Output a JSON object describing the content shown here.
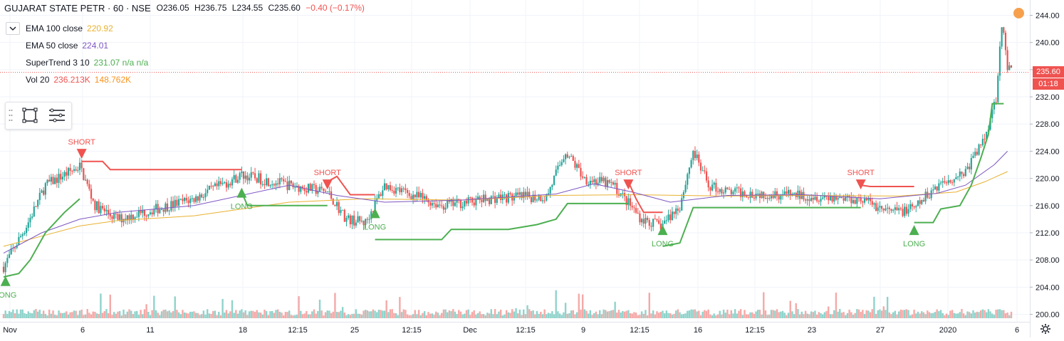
{
  "header": {
    "title": "GUJARAT STATE PETR · 60 · NSE",
    "ohlc": {
      "open": "O236.05",
      "high": "H236.75",
      "low": "L234.55",
      "close": "C235.60",
      "change": "−0.40 (−0.17%)"
    }
  },
  "indicators": [
    {
      "name": "EMA 100 close",
      "value": "220.92",
      "color": "#e8b130"
    },
    {
      "name": "EMA 50 close",
      "value": "224.01",
      "color": "#7e57c2"
    },
    {
      "name": "SuperTrend 3 10",
      "value": "231.07 n/a n/a",
      "color": "#4caf50"
    },
    {
      "name": "Vol 20",
      "value": "236.213K",
      "value2": "148.762K",
      "color": "#ef5350",
      "color2": "#f7931e"
    }
  ],
  "price_tags": {
    "last": "235.60",
    "countdown": "01:18"
  },
  "colors": {
    "up": "#26a69a",
    "down": "#ef5350",
    "supertrend_up": "#4caf50",
    "supertrend_down": "#ef5350",
    "ema100": "#e8b130",
    "ema50": "#7e57c2",
    "vol_up": "#8fd3cb",
    "vol_down": "#f4a9a7"
  },
  "icons": {
    "toolbox": [
      "rectangle-icon",
      "lines-icon"
    ],
    "settings": "gear-icon"
  },
  "chart_data": {
    "type": "candlestick",
    "price_axis": {
      "ticks": [
        "244.00",
        "240.00",
        "236.00",
        "232.00",
        "228.00",
        "224.00",
        "220.00",
        "216.00",
        "212.00",
        "208.00",
        "204.00",
        "200.00"
      ],
      "ylim": [
        199.5,
        245.5
      ]
    },
    "time_axis": {
      "ticks": [
        "Nov",
        "6",
        "11",
        "18",
        "12:15",
        "25",
        "12:15",
        "Dec",
        "12:15",
        "9",
        "12:15",
        "16",
        "12:15",
        "23",
        "27",
        "2020",
        "6"
      ]
    },
    "signals": [
      {
        "label": "LONG",
        "type": "long",
        "bar": 1,
        "price": 205.0
      },
      {
        "label": "SHORT",
        "type": "short",
        "bar": 41,
        "price": 223.5
      },
      {
        "label": "LONG",
        "type": "long",
        "bar": 125,
        "price": 218.0
      },
      {
        "label": "SHORT",
        "type": "short",
        "bar": 170,
        "price": 219.0
      },
      {
        "label": "LONG",
        "type": "long",
        "bar": 195,
        "price": 215.0
      },
      {
        "label": "SHORT",
        "type": "short",
        "bar": 328,
        "price": 219.0
      },
      {
        "label": "LONG",
        "type": "long",
        "bar": 346,
        "price": 212.5
      },
      {
        "label": "SHORT",
        "type": "short",
        "bar": 450,
        "price": 219.0
      },
      {
        "label": "LONG",
        "type": "long",
        "bar": 478,
        "price": 212.5
      }
    ],
    "supertrend": [
      {
        "dir": "up",
        "points": [
          [
            0,
            205.5
          ],
          [
            8,
            206
          ],
          [
            14,
            208
          ],
          [
            22,
            212
          ],
          [
            32,
            215
          ],
          [
            40,
            217
          ]
        ]
      },
      {
        "dir": "down",
        "points": [
          [
            41,
            222.5
          ],
          [
            52,
            222.5
          ],
          [
            56,
            221.3
          ],
          [
            125,
            221.3
          ]
        ]
      },
      {
        "dir": "up",
        "points": [
          [
            125,
            218
          ],
          [
            128,
            216
          ],
          [
            170,
            216
          ]
        ]
      },
      {
        "dir": "down",
        "points": [
          [
            170,
            219.5
          ],
          [
            175,
            220.3
          ],
          [
            182,
            217.6
          ],
          [
            195,
            217.6
          ]
        ]
      },
      {
        "dir": "up",
        "points": [
          [
            195,
            211
          ],
          [
            230,
            211
          ],
          [
            235,
            212.5
          ],
          [
            265,
            212.5
          ],
          [
            280,
            213.2
          ],
          [
            290,
            214
          ],
          [
            296,
            216.3
          ],
          [
            328,
            216.3
          ]
        ]
      },
      {
        "dir": "down",
        "points": [
          [
            328,
            219.5
          ],
          [
            332,
            217
          ],
          [
            336,
            215
          ],
          [
            346,
            215
          ]
        ]
      },
      {
        "dir": "up",
        "points": [
          [
            346,
            210
          ],
          [
            355,
            210.5
          ],
          [
            362,
            215.7
          ],
          [
            450,
            215.7
          ]
        ]
      },
      {
        "dir": "down",
        "points": [
          [
            450,
            219
          ],
          [
            455,
            218.8
          ],
          [
            478,
            218.8
          ]
        ]
      },
      {
        "dir": "up",
        "points": [
          [
            478,
            213.5
          ],
          [
            488,
            213.5
          ],
          [
            492,
            215.5
          ],
          [
            502,
            216
          ],
          [
            508,
            219
          ],
          [
            513,
            223
          ],
          [
            517,
            226.5
          ],
          [
            519,
            231
          ],
          [
            525,
            231
          ]
        ]
      }
    ],
    "ema50": [
      [
        0,
        209
      ],
      [
        20,
        212
      ],
      [
        40,
        214
      ],
      [
        60,
        215
      ],
      [
        100,
        216
      ],
      [
        150,
        219
      ],
      [
        175,
        217.5
      ],
      [
        200,
        216.5
      ],
      [
        240,
        216.8
      ],
      [
        290,
        217.7
      ],
      [
        310,
        219.2
      ],
      [
        330,
        218
      ],
      [
        350,
        216.5
      ],
      [
        380,
        217.5
      ],
      [
        420,
        217.6
      ],
      [
        460,
        217
      ],
      [
        490,
        217.8
      ],
      [
        505,
        219
      ],
      [
        520,
        222
      ],
      [
        527,
        224
      ]
    ],
    "ema100": [
      [
        0,
        210
      ],
      [
        20,
        211.5
      ],
      [
        40,
        213
      ],
      [
        60,
        213.8
      ],
      [
        100,
        214.5
      ],
      [
        150,
        216.5
      ],
      [
        190,
        217
      ],
      [
        240,
        216.8
      ],
      [
        290,
        217.5
      ],
      [
        330,
        217.6
      ],
      [
        380,
        217.4
      ],
      [
        420,
        217.5
      ],
      [
        470,
        217.4
      ],
      [
        500,
        218
      ],
      [
        515,
        219.5
      ],
      [
        527,
        221
      ]
    ]
  }
}
